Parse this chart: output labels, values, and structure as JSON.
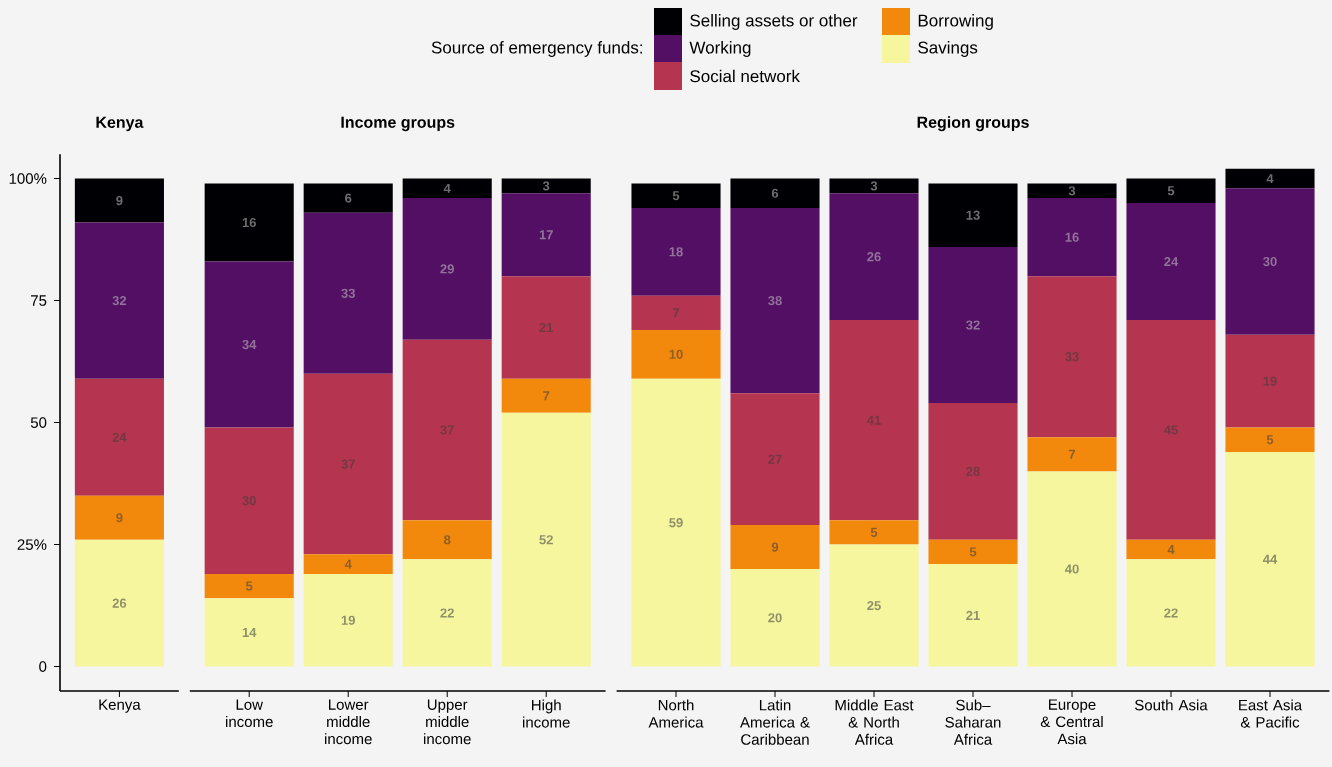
{
  "chart_data": [
    {
      "type": "bar",
      "stacked": true,
      "title": "Kenya",
      "legend": "top",
      "legend_title": "Source of emergency funds:",
      "data_labels": true,
      "categories": [
        "Kenya"
      ],
      "ylim": [
        -5,
        105
      ],
      "yticks": [
        0,
        {
          "value": 25,
          "label": "25%"
        },
        50,
        75,
        {
          "value": 100,
          "label": "100%"
        }
      ],
      "series": [
        {
          "name": "Savings",
          "color": "#f6f69f",
          "values": [
            26
          ]
        },
        {
          "name": "Borrowing",
          "color": "#f2890c",
          "values": [
            9
          ]
        },
        {
          "name": "Social network",
          "color": "#b5344f",
          "values": [
            24
          ]
        },
        {
          "name": "Working",
          "color": "#520f63",
          "values": [
            32
          ]
        },
        {
          "name": "Selling assets or other",
          "color": "#000004",
          "values": [
            9
          ]
        }
      ]
    },
    {
      "type": "bar",
      "stacked": true,
      "title": "Income groups",
      "data_labels": true,
      "tick_labels": "x",
      "categories": [
        "Low income",
        "Lower middle income",
        "Upper middle income",
        "High income"
      ],
      "series": [
        {
          "color": "#f6f69f",
          "values": [
            14,
            19,
            22,
            52
          ]
        },
        {
          "color": "#f2890c",
          "values": [
            5,
            4,
            8,
            7
          ]
        },
        {
          "color": "#b5344f",
          "values": [
            30,
            37,
            37,
            21
          ]
        },
        {
          "color": "#520f63",
          "values": [
            34,
            33,
            29,
            17
          ]
        },
        {
          "color": "#000004",
          "values": [
            16,
            6,
            4,
            3
          ]
        }
      ]
    },
    {
      "type": "bar",
      "stacked": true,
      "title": "Region groups",
      "data_labels": true,
      "tick_labels": "x",
      "categories": [
        "North America",
        "Latin America & Caribbean",
        "Middle East & North Africa",
        "Sub–Saharan Africa",
        "Europe & Central Asia",
        "South Asia",
        "East Asia & Pacific"
      ],
      "series": [
        {
          "color": "#f6f69f",
          "values": [
            59,
            20,
            25,
            21,
            40,
            22,
            44
          ]
        },
        {
          "color": "#f2890c",
          "values": [
            10,
            9,
            5,
            5,
            7,
            4,
            5
          ]
        },
        {
          "color": "#b5344f",
          "values": [
            7,
            27,
            41,
            28,
            33,
            45,
            19
          ]
        },
        {
          "color": "#520f63",
          "values": [
            18,
            38,
            26,
            32,
            16,
            24,
            30
          ]
        },
        {
          "color": "#000004",
          "values": [
            5,
            6,
            3,
            13,
            3,
            5,
            4
          ]
        }
      ]
    }
  ]
}
